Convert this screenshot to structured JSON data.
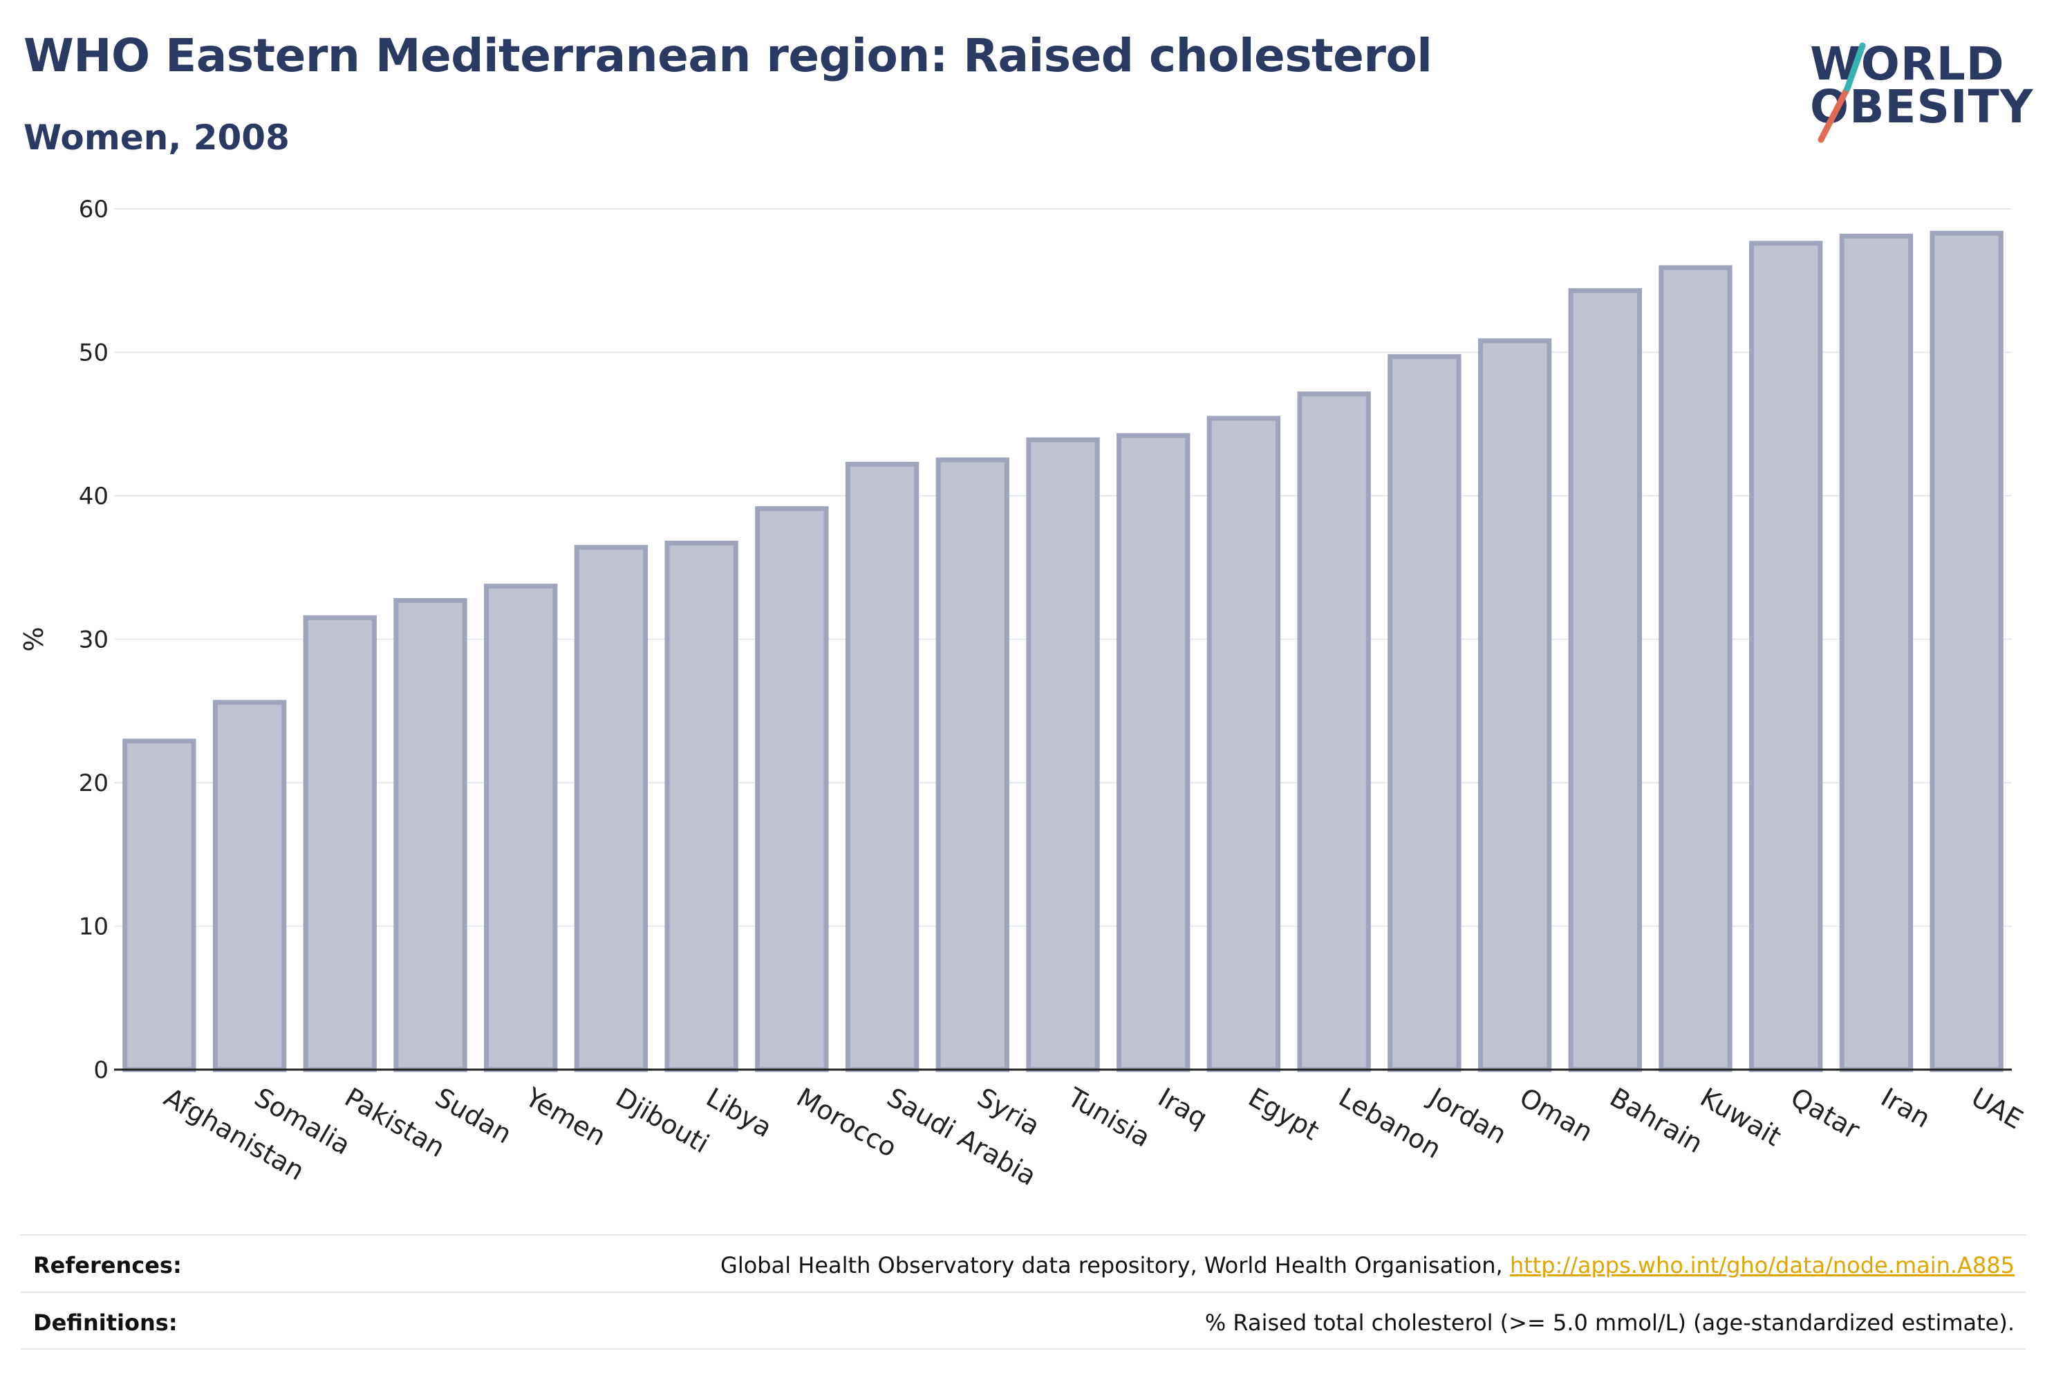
{
  "header": {
    "title": "WHO Eastern Mediterranean region: Raised cholesterol",
    "subtitle": "Women, 2008"
  },
  "logo": {
    "line1": "WORLD",
    "line2": "OBESITY",
    "slash_colors": [
      "#e06a55",
      "#36b3b0"
    ]
  },
  "chart_data": {
    "type": "bar",
    "title": "WHO Eastern Mediterranean region: Raised cholesterol",
    "subtitle": "Women, 2008",
    "xlabel": "",
    "ylabel": "%",
    "ylim": [
      0,
      60
    ],
    "yticks": [
      0,
      10,
      20,
      30,
      40,
      50,
      60
    ],
    "grid": true,
    "bar_fill": "#bfc3d1",
    "bar_stroke": "#9ea4bc",
    "categories": [
      "Afghanistan",
      "Somalia",
      "Pakistan",
      "Sudan",
      "Yemen",
      "Djibouti",
      "Libya",
      "Morocco",
      "Saudi Arabia",
      "Syria",
      "Tunisia",
      "Iraq",
      "Egypt",
      "Lebanon",
      "Jordan",
      "Oman",
      "Bahrain",
      "Kuwait",
      "Qatar",
      "Iran",
      "UAE"
    ],
    "values": [
      22.9,
      25.6,
      31.5,
      32.7,
      33.7,
      36.4,
      36.7,
      39.1,
      42.2,
      42.5,
      43.9,
      44.2,
      45.4,
      47.1,
      49.7,
      50.8,
      54.3,
      55.9,
      57.6,
      58.1,
      58.3
    ]
  },
  "footer": {
    "references_label": "References:",
    "references_text": "Global Health Observatory data repository, World Health Organisation, ",
    "references_link": "http://apps.who.int/gho/data/node.main.A885",
    "definitions_label": "Definitions:",
    "definitions_text": "% Raised total cholesterol (>= 5.0 mmol/L) (age-standardized estimate)."
  }
}
